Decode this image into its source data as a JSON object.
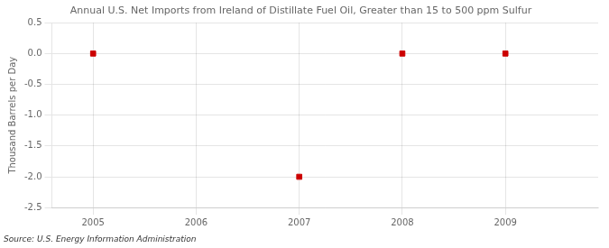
{
  "chart_data": {
    "type": "scatter",
    "title": "Annual U.S. Net Imports from Ireland of Distillate Fuel Oil, Greater than 15 to 500 ppm Sulfur",
    "ylabel": "Thousand Barrels per Day",
    "source": "Source: U.S. Energy Information Administration",
    "x": [
      2005,
      2007,
      2008,
      2009
    ],
    "values": [
      0.0,
      -2.0,
      0.0,
      0.0
    ],
    "color": "#CC0000",
    "marker": "square",
    "xlim": [
      2004.6,
      2009.9
    ],
    "xticks": [
      2005,
      2006,
      2007,
      2008,
      2009
    ],
    "ylim": [
      -2.5,
      0.5
    ],
    "yticks": [
      0.5,
      {
        "value": 0,
        "label": "0.0"
      },
      -0.5,
      {
        "value": -1,
        "label": "-1.0"
      },
      -1.5,
      {
        "value": -2,
        "label": "-2.0"
      },
      -2.5
    ],
    "grid": true
  }
}
